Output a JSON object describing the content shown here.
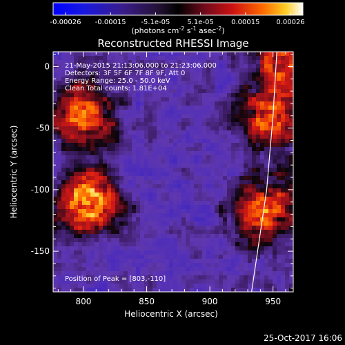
{
  "chart_data": {
    "type": "heatmap",
    "title": "Reconstructed RHESSI Image",
    "xlabel": "Heliocentric X (arcsec)",
    "ylabel": "Heliocentric Y (arcsec)",
    "xlim": [
      776,
      966
    ],
    "ylim": [
      -183,
      12
    ],
    "x_ticks": [
      800,
      850,
      900,
      950
    ],
    "y_ticks": [
      0,
      -50,
      -100,
      -150
    ],
    "colorbar": {
      "min": -0.00026,
      "max": 0.00026,
      "tick_labels": [
        "-0.00026",
        "-0.00015",
        "-5.1e-05",
        "5.1e-05",
        "0.00015",
        "0.00026"
      ],
      "unit_main": "(photons cm",
      "unit_sup1": "-2",
      "unit_mid1": " s",
      "unit_sup2": "-1",
      "unit_mid2": " asec",
      "unit_sup3": "-2",
      "unit_end": ")"
    },
    "annotations": [
      "21-May-2015 21:13:06.000 to 21:23:06.000",
      "Detectors: 3F 5F 6F 7F 8F 9F, Att 0",
      "Energy Range: 25.0 - 50.0 keV",
      "Clean     Total counts: 1.81E+04"
    ],
    "peak_label": "Position of Peak = [803,-110]",
    "sources": [
      {
        "x": 803,
        "y": -110,
        "intensity": 1.0
      },
      {
        "x": 800,
        "y": -38,
        "intensity": 0.85
      },
      {
        "x": 948,
        "y": -42,
        "intensity": 0.7
      },
      {
        "x": 942,
        "y": -118,
        "intensity": 0.75
      },
      {
        "x": 955,
        "y": 2,
        "intensity": 0.55
      }
    ],
    "limb_curve": [
      [
        933,
        -183
      ],
      [
        945,
        -100
      ],
      [
        950,
        -40
      ],
      [
        953,
        12
      ]
    ],
    "timestamp": "25-Oct-2017 16:06"
  }
}
